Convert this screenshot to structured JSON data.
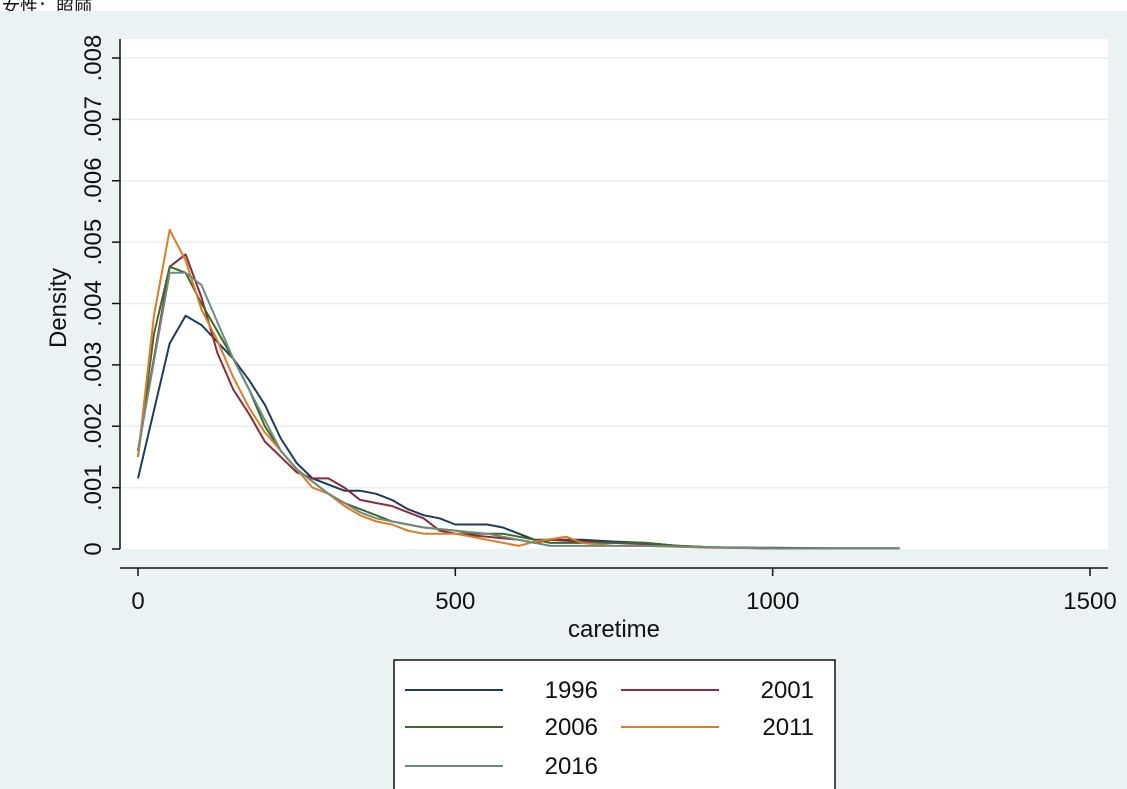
{
  "caption": "女性：照顾",
  "chart_data": {
    "type": "line",
    "xlabel": "caretime",
    "ylabel": "Density",
    "xlim": [
      0,
      1500
    ],
    "ylim": [
      0,
      0.008
    ],
    "x_ticks": [
      0,
      500,
      1000,
      1500
    ],
    "x_tick_labels": [
      "0",
      "500",
      "1000",
      "1500"
    ],
    "y_ticks": [
      0,
      0.001,
      0.002,
      0.003,
      0.004,
      0.005,
      0.006,
      0.007,
      0.008
    ],
    "y_tick_labels": [
      "0",
      ".001",
      ".002",
      ".003",
      ".004",
      ".005",
      ".006",
      ".007",
      ".008"
    ],
    "grid": true,
    "legend_position": "bottom",
    "series": [
      {
        "name": "1996",
        "color": "#1f3a5f",
        "points": [
          [
            0,
            0.00115
          ],
          [
            50,
            0.00335
          ],
          [
            75,
            0.0038
          ],
          [
            100,
            0.00365
          ],
          [
            150,
            0.0031
          ],
          [
            175,
            0.00275
          ],
          [
            200,
            0.00235
          ],
          [
            225,
            0.0018
          ],
          [
            250,
            0.0014
          ],
          [
            275,
            0.00115
          ],
          [
            300,
            0.00105
          ],
          [
            325,
            0.00095
          ],
          [
            350,
            0.00095
          ],
          [
            375,
            0.0009
          ],
          [
            400,
            0.0008
          ],
          [
            425,
            0.00065
          ],
          [
            450,
            0.00055
          ],
          [
            475,
            0.0005
          ],
          [
            500,
            0.0004
          ],
          [
            525,
            0.0004
          ],
          [
            550,
            0.0004
          ],
          [
            575,
            0.00035
          ],
          [
            600,
            0.00025
          ],
          [
            625,
            0.00015
          ],
          [
            650,
            0.00015
          ],
          [
            700,
            0.00015
          ],
          [
            750,
            0.00012
          ],
          [
            800,
            0.0001
          ],
          [
            850,
            5e-05
          ],
          [
            900,
            3e-05
          ],
          [
            1000,
            2e-05
          ],
          [
            1100,
            1e-05
          ],
          [
            1200,
            1e-05
          ]
        ]
      },
      {
        "name": "2001",
        "color": "#8b2c3c",
        "points": [
          [
            0,
            0.0016
          ],
          [
            50,
            0.0046
          ],
          [
            75,
            0.0048
          ],
          [
            100,
            0.0041
          ],
          [
            125,
            0.0032
          ],
          [
            150,
            0.0026
          ],
          [
            175,
            0.0022
          ],
          [
            200,
            0.00175
          ],
          [
            225,
            0.0015
          ],
          [
            250,
            0.00125
          ],
          [
            275,
            0.00115
          ],
          [
            300,
            0.00115
          ],
          [
            325,
            0.001
          ],
          [
            350,
            0.0008
          ],
          [
            375,
            0.00075
          ],
          [
            400,
            0.0007
          ],
          [
            425,
            0.0006
          ],
          [
            450,
            0.0005
          ],
          [
            475,
            0.0003
          ],
          [
            500,
            0.00025
          ],
          [
            550,
            0.0002
          ],
          [
            600,
            0.00015
          ],
          [
            625,
            0.0001
          ],
          [
            650,
            0.00015
          ],
          [
            700,
            0.00012
          ],
          [
            750,
            0.0001
          ],
          [
            800,
            8e-05
          ],
          [
            900,
            3e-05
          ],
          [
            1000,
            1e-05
          ],
          [
            1100,
            1e-05
          ],
          [
            1200,
            1e-05
          ]
        ]
      },
      {
        "name": "2006",
        "color": "#3a6b2a",
        "points": [
          [
            0,
            0.0015
          ],
          [
            25,
            0.0035
          ],
          [
            50,
            0.0046
          ],
          [
            75,
            0.0045
          ],
          [
            100,
            0.004
          ],
          [
            150,
            0.0031
          ],
          [
            175,
            0.0026
          ],
          [
            200,
            0.002
          ],
          [
            225,
            0.0016
          ],
          [
            250,
            0.0013
          ],
          [
            275,
            0.0011
          ],
          [
            300,
            0.0009
          ],
          [
            325,
            0.00075
          ],
          [
            350,
            0.00065
          ],
          [
            375,
            0.00055
          ],
          [
            400,
            0.00045
          ],
          [
            450,
            0.00035
          ],
          [
            500,
            0.0003
          ],
          [
            525,
            0.00025
          ],
          [
            575,
            0.00025
          ],
          [
            600,
            0.0002
          ],
          [
            625,
            0.00015
          ],
          [
            650,
            0.0001
          ],
          [
            700,
            0.0001
          ],
          [
            750,
            0.0001
          ],
          [
            800,
            0.0001
          ],
          [
            850,
            5e-05
          ],
          [
            900,
            3e-05
          ],
          [
            1000,
            1e-05
          ],
          [
            1100,
            1e-05
          ],
          [
            1200,
            1e-05
          ]
        ]
      },
      {
        "name": "2011",
        "color": "#e07b24",
        "points": [
          [
            0,
            0.0015
          ],
          [
            25,
            0.0038
          ],
          [
            50,
            0.0052
          ],
          [
            75,
            0.0047
          ],
          [
            100,
            0.0039
          ],
          [
            125,
            0.0034
          ],
          [
            150,
            0.0028
          ],
          [
            175,
            0.0023
          ],
          [
            200,
            0.0019
          ],
          [
            225,
            0.0016
          ],
          [
            250,
            0.0013
          ],
          [
            275,
            0.001
          ],
          [
            300,
            0.0009
          ],
          [
            325,
            0.0007
          ],
          [
            350,
            0.00055
          ],
          [
            375,
            0.00045
          ],
          [
            400,
            0.0004
          ],
          [
            425,
            0.0003
          ],
          [
            450,
            0.00025
          ],
          [
            475,
            0.00025
          ],
          [
            500,
            0.00025
          ],
          [
            525,
            0.0002
          ],
          [
            550,
            0.00015
          ],
          [
            600,
            5e-05
          ],
          [
            625,
            0.00012
          ],
          [
            675,
            0.0002
          ],
          [
            700,
            0.0001
          ],
          [
            750,
            5e-05
          ],
          [
            800,
            5e-05
          ],
          [
            900,
            2e-05
          ],
          [
            1000,
            1e-05
          ]
        ]
      },
      {
        "name": "2016",
        "color": "#6f8a7e",
        "points": [
          [
            0,
            0.0016
          ],
          [
            50,
            0.0045
          ],
          [
            75,
            0.0045
          ],
          [
            100,
            0.0043
          ],
          [
            125,
            0.0037
          ],
          [
            150,
            0.0031
          ],
          [
            175,
            0.0026
          ],
          [
            200,
            0.0021
          ],
          [
            225,
            0.0016
          ],
          [
            250,
            0.0013
          ],
          [
            275,
            0.0011
          ],
          [
            300,
            0.0009
          ],
          [
            325,
            0.00075
          ],
          [
            350,
            0.0006
          ],
          [
            375,
            0.0005
          ],
          [
            400,
            0.00045
          ],
          [
            450,
            0.00035
          ],
          [
            500,
            0.0003
          ],
          [
            550,
            0.00025
          ],
          [
            575,
            0.0002
          ],
          [
            600,
            0.00015
          ],
          [
            625,
            0.0001
          ],
          [
            650,
            5e-05
          ],
          [
            700,
            5e-05
          ],
          [
            750,
            5e-05
          ],
          [
            800,
            5e-05
          ],
          [
            900,
            3e-05
          ],
          [
            1000,
            1e-05
          ],
          [
            1100,
            1e-05
          ],
          [
            1200,
            1e-05
          ]
        ]
      }
    ]
  }
}
